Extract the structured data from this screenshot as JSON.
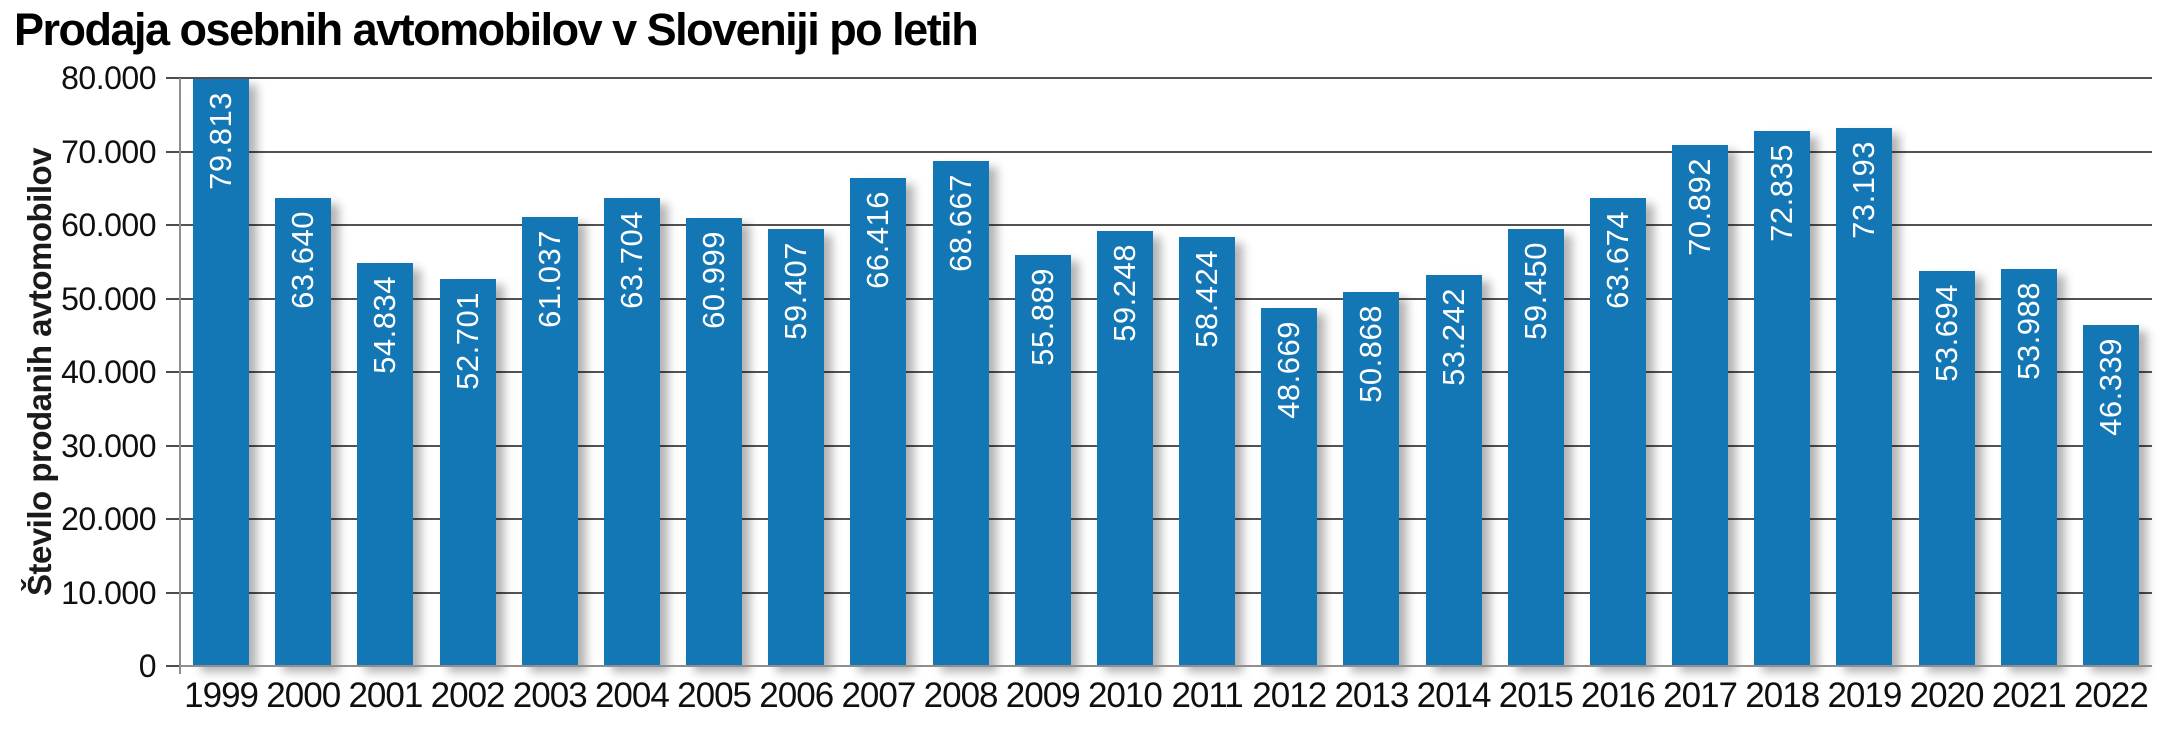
{
  "chart_data": {
    "type": "bar",
    "title": "Prodaja osebnih avtomobilov v Sloveniji po letih",
    "xlabel": "",
    "ylabel": "Število prodanih avtomobilov",
    "ylim": [
      0,
      80000
    ],
    "grid": true,
    "legend": false,
    "categories": [
      "1999",
      "2000",
      "2001",
      "2002",
      "2003",
      "2004",
      "2005",
      "2006",
      "2007",
      "2008",
      "2009",
      "2010",
      "2011",
      "2012",
      "2013",
      "2014",
      "2015",
      "2016",
      "2017",
      "2018",
      "2019",
      "2020",
      "2021",
      "2022"
    ],
    "values": [
      79813,
      63640,
      54834,
      52701,
      61037,
      63704,
      60999,
      59407,
      66416,
      68667,
      55889,
      59248,
      58424,
      48669,
      50868,
      53242,
      59450,
      63674,
      70892,
      72835,
      73193,
      53694,
      53988,
      46339
    ],
    "value_labels": [
      "79.813",
      "63.640",
      "54.834",
      "52.701",
      "61.037",
      "63.704",
      "60.999",
      "59.407",
      "66.416",
      "68.667",
      "55.889",
      "59.248",
      "58.424",
      "48.669",
      "50.868",
      "53.242",
      "59.450",
      "63.674",
      "70.892",
      "72.835",
      "73.193",
      "53.694",
      "53.988",
      "46.339"
    ],
    "y_tick_values": [
      0,
      10000,
      20000,
      30000,
      40000,
      50000,
      60000,
      70000,
      80000
    ],
    "y_tick_labels": [
      "0",
      "10.000",
      "20.000",
      "30.000",
      "40.000",
      "50.000",
      "60.000",
      "70.000",
      "80.000"
    ],
    "colors": {
      "bar": "#1376b5",
      "bar_value_text": "#ffffff",
      "gridline": "#525252",
      "axis_line": "#8e8e8e",
      "tick": "#4c4c4c",
      "text": "#0f0f0f",
      "background": "#ffffff"
    }
  }
}
